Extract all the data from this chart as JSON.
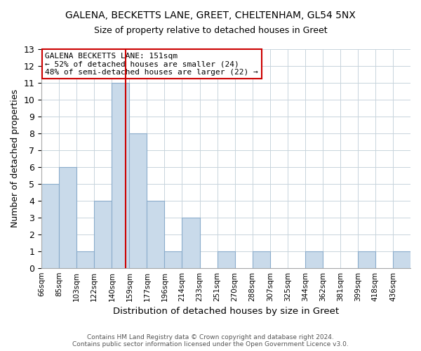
{
  "title": "GALENA, BECKETTS LANE, GREET, CHELTENHAM, GL54 5NX",
  "subtitle": "Size of property relative to detached houses in Greet",
  "xlabel": "Distribution of detached houses by size in Greet",
  "ylabel": "Number of detached properties",
  "bin_labels": [
    "66sqm",
    "85sqm",
    "103sqm",
    "122sqm",
    "140sqm",
    "159sqm",
    "177sqm",
    "196sqm",
    "214sqm",
    "233sqm",
    "251sqm",
    "270sqm",
    "288sqm",
    "307sqm",
    "325sqm",
    "344sqm",
    "362sqm",
    "381sqm",
    "399sqm",
    "418sqm",
    "436sqm"
  ],
  "bar_heights": [
    5,
    6,
    1,
    4,
    11,
    8,
    4,
    1,
    3,
    0,
    1,
    0,
    1,
    0,
    0,
    1,
    0,
    0,
    1,
    0,
    1
  ],
  "bar_color": "#c9daea",
  "bar_edge_color": "#8aaccb",
  "vline_bin": 4.8,
  "vline_color": "#cc0000",
  "ylim": [
    0,
    13
  ],
  "yticks": [
    0,
    1,
    2,
    3,
    4,
    5,
    6,
    7,
    8,
    9,
    10,
    11,
    12,
    13
  ],
  "annotation_title": "GALENA BECKETTS LANE: 151sqm",
  "annotation_line1": "← 52% of detached houses are smaller (24)",
  "annotation_line2": "48% of semi-detached houses are larger (22) →",
  "annotation_box_color": "#ffffff",
  "annotation_box_edge": "#cc0000",
  "footer_line1": "Contains HM Land Registry data © Crown copyright and database right 2024.",
  "footer_line2": "Contains public sector information licensed under the Open Government Licence v3.0.",
  "background_color": "#ffffff",
  "grid_color": "#c8d4dc",
  "figsize": [
    6.0,
    5.0
  ],
  "dpi": 100
}
